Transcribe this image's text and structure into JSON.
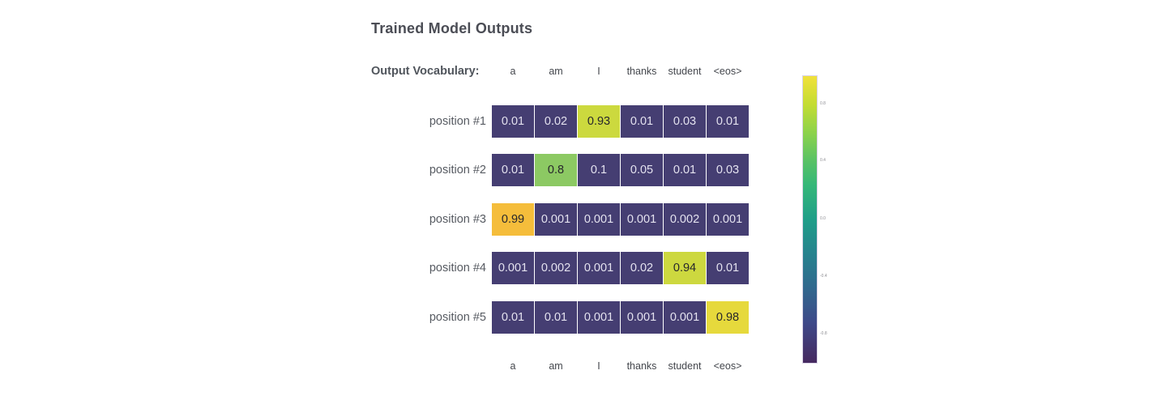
{
  "title": "Trained Model Outputs",
  "vocab_label": "Output Vocabulary:",
  "colors": {
    "cell_dark": "#453e72",
    "cell_text_light": "#e4e2ef",
    "cell_text_dark": "#27272c",
    "highlight_yellow_green": "#ccd93e",
    "highlight_green": "#8cc963",
    "highlight_amber": "#f5bd3b",
    "highlight_yellow": "#e6d93c",
    "title_text": "#4b4d55",
    "label_text": "#575b62"
  },
  "chart_data": {
    "type": "heatmap",
    "title": "Trained Model Outputs",
    "columns": [
      "a",
      "am",
      "I",
      "thanks",
      "student",
      "<eos>"
    ],
    "rows": [
      {
        "label": "position #1",
        "values": [
          "0.01",
          "0.02",
          "0.93",
          "0.01",
          "0.03",
          "0.01"
        ],
        "cell_colors": [
          "#453e72",
          "#453e72",
          "#ccd93e",
          "#453e72",
          "#453e72",
          "#453e72"
        ],
        "text_colors": [
          "#e4e2ef",
          "#e4e2ef",
          "#27272c",
          "#e4e2ef",
          "#e4e2ef",
          "#e4e2ef"
        ]
      },
      {
        "label": "position #2",
        "values": [
          "0.01",
          "0.8",
          "0.1",
          "0.05",
          "0.01",
          "0.03"
        ],
        "cell_colors": [
          "#453e72",
          "#8cc963",
          "#453e72",
          "#453e72",
          "#453e72",
          "#453e72"
        ],
        "text_colors": [
          "#e4e2ef",
          "#27272c",
          "#e4e2ef",
          "#e4e2ef",
          "#e4e2ef",
          "#e4e2ef"
        ]
      },
      {
        "label": "position #3",
        "values": [
          "0.99",
          "0.001",
          "0.001",
          "0.001",
          "0.002",
          "0.001"
        ],
        "cell_colors": [
          "#f5bd3b",
          "#453e72",
          "#453e72",
          "#453e72",
          "#453e72",
          "#453e72"
        ],
        "text_colors": [
          "#27272c",
          "#e4e2ef",
          "#e4e2ef",
          "#e4e2ef",
          "#e4e2ef",
          "#e4e2ef"
        ]
      },
      {
        "label": "position #4",
        "values": [
          "0.001",
          "0.002",
          "0.001",
          "0.02",
          "0.94",
          "0.01"
        ],
        "cell_colors": [
          "#453e72",
          "#453e72",
          "#453e72",
          "#453e72",
          "#cdd83f",
          "#453e72"
        ],
        "text_colors": [
          "#e4e2ef",
          "#e4e2ef",
          "#e4e2ef",
          "#e4e2ef",
          "#27272c",
          "#e4e2ef"
        ]
      },
      {
        "label": "position #5",
        "values": [
          "0.01",
          "0.01",
          "0.001",
          "0.001",
          "0.001",
          "0.98"
        ],
        "cell_colors": [
          "#453e72",
          "#453e72",
          "#453e72",
          "#453e72",
          "#453e72",
          "#e6d93c"
        ],
        "text_colors": [
          "#e4e2ef",
          "#e4e2ef",
          "#e4e2ef",
          "#e4e2ef",
          "#e4e2ef",
          "#27272c"
        ]
      }
    ],
    "colorbar": {
      "colormap": "viridis",
      "ticks": [
        "0.8",
        "0.4",
        "0.0",
        "-0.4",
        "-0.8"
      ],
      "range": [
        -1,
        1
      ],
      "position": "right"
    },
    "x_axis_labels_bottom": [
      "a",
      "am",
      "I",
      "thanks",
      "student",
      "<eos>"
    ],
    "legend": "none",
    "grid": "off"
  }
}
